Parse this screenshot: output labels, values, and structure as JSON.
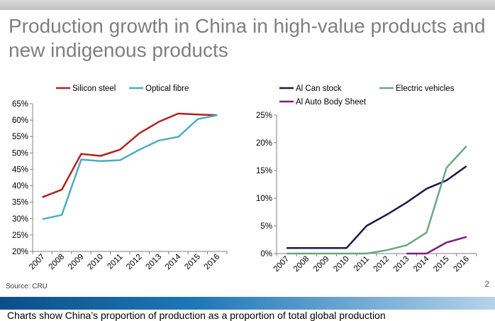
{
  "slide": {
    "title": "Production growth in China in high-value products and new indigenous products",
    "source": "Source: CRU",
    "page_number": "2",
    "caption": "Charts show China’s proportion of production as a proportion of total global production"
  },
  "chart_data": [
    {
      "type": "line",
      "x": [
        "2007",
        "2008",
        "2009",
        "2010",
        "2011",
        "2012",
        "2013",
        "2014",
        "2015",
        "2016"
      ],
      "series": [
        {
          "name": "Silicon steel",
          "color": "#b22222",
          "values": [
            36.5,
            38.8,
            49.7,
            49.1,
            51.0,
            56.0,
            59.5,
            62.0,
            61.7,
            61.5
          ]
        },
        {
          "name": "Optical fibre",
          "color": "#4bacc6",
          "values": [
            29.8,
            31.1,
            48.0,
            47.5,
            47.8,
            51.0,
            53.8,
            54.9,
            60.3,
            61.5
          ]
        }
      ],
      "yticks": [
        "20%",
        "25%",
        "30%",
        "35%",
        "40%",
        "45%",
        "50%",
        "55%",
        "60%",
        "65%"
      ],
      "ylim": [
        20,
        65
      ],
      "grid": false,
      "legend": "top"
    },
    {
      "type": "line",
      "x": [
        "2007",
        "2008",
        "2009",
        "2010",
        "2011",
        "2012",
        "2013",
        "2014",
        "2015",
        "2016"
      ],
      "series": [
        {
          "name": "Al Can stock",
          "color": "#1c1a4a",
          "values": [
            1.0,
            1.0,
            1.0,
            1.0,
            5.0,
            7.0,
            9.2,
            11.7,
            13.2,
            15.8
          ]
        },
        {
          "name": "Electric vehicles",
          "color": "#6aa87f",
          "values": [
            0.0,
            0.0,
            0.0,
            0.0,
            0.0,
            0.6,
            1.5,
            3.8,
            15.5,
            19.4
          ]
        },
        {
          "name": "Al Auto Body Sheet",
          "color": "#7b1f7a",
          "values": [
            null,
            null,
            null,
            null,
            null,
            null,
            0.0,
            0.0,
            2.0,
            3.0
          ]
        }
      ],
      "yticks": [
        "0%",
        "5%",
        "10%",
        "15%",
        "20%",
        "25%"
      ],
      "ylim": [
        0,
        25
      ],
      "grid": false,
      "legend": "top"
    }
  ]
}
